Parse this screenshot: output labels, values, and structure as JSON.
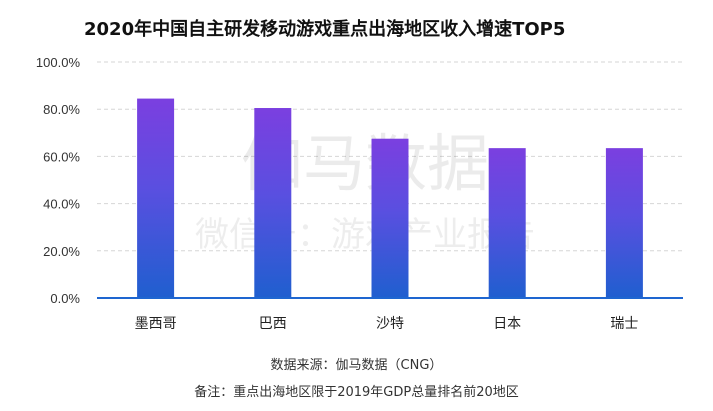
{
  "chart_data": {
    "type": "bar",
    "title": "2020年中国自主研发移动游戏重点出海地区收入增速TOP5",
    "categories": [
      "墨西哥",
      "巴西",
      "沙特",
      "日本",
      "瑞士"
    ],
    "values": [
      84.5,
      80.5,
      67.5,
      63.5,
      63.5
    ],
    "ylim": [
      0,
      100
    ],
    "yticks": [
      "0.0%",
      "20.0%",
      "40.0%",
      "60.0%",
      "80.0%",
      "100.0%"
    ],
    "ytick_values": [
      0,
      20,
      40,
      60,
      80,
      100
    ],
    "xlabel": "",
    "ylabel": "",
    "grid": "horizontal-dashed",
    "colors": {
      "bar_top": "#7b3fe0",
      "bar_bottom": "#1f5fcf",
      "axis": "#1e66d0",
      "grid": "#d6d6d6"
    }
  },
  "watermark": {
    "main": "伽马数据",
    "sub": "微信号：游戏产业报告"
  },
  "footer": {
    "source": "数据来源：伽马数据（CNG）",
    "note": "备注：重点出海地区限于2019年GDP总量排名前20地区"
  }
}
